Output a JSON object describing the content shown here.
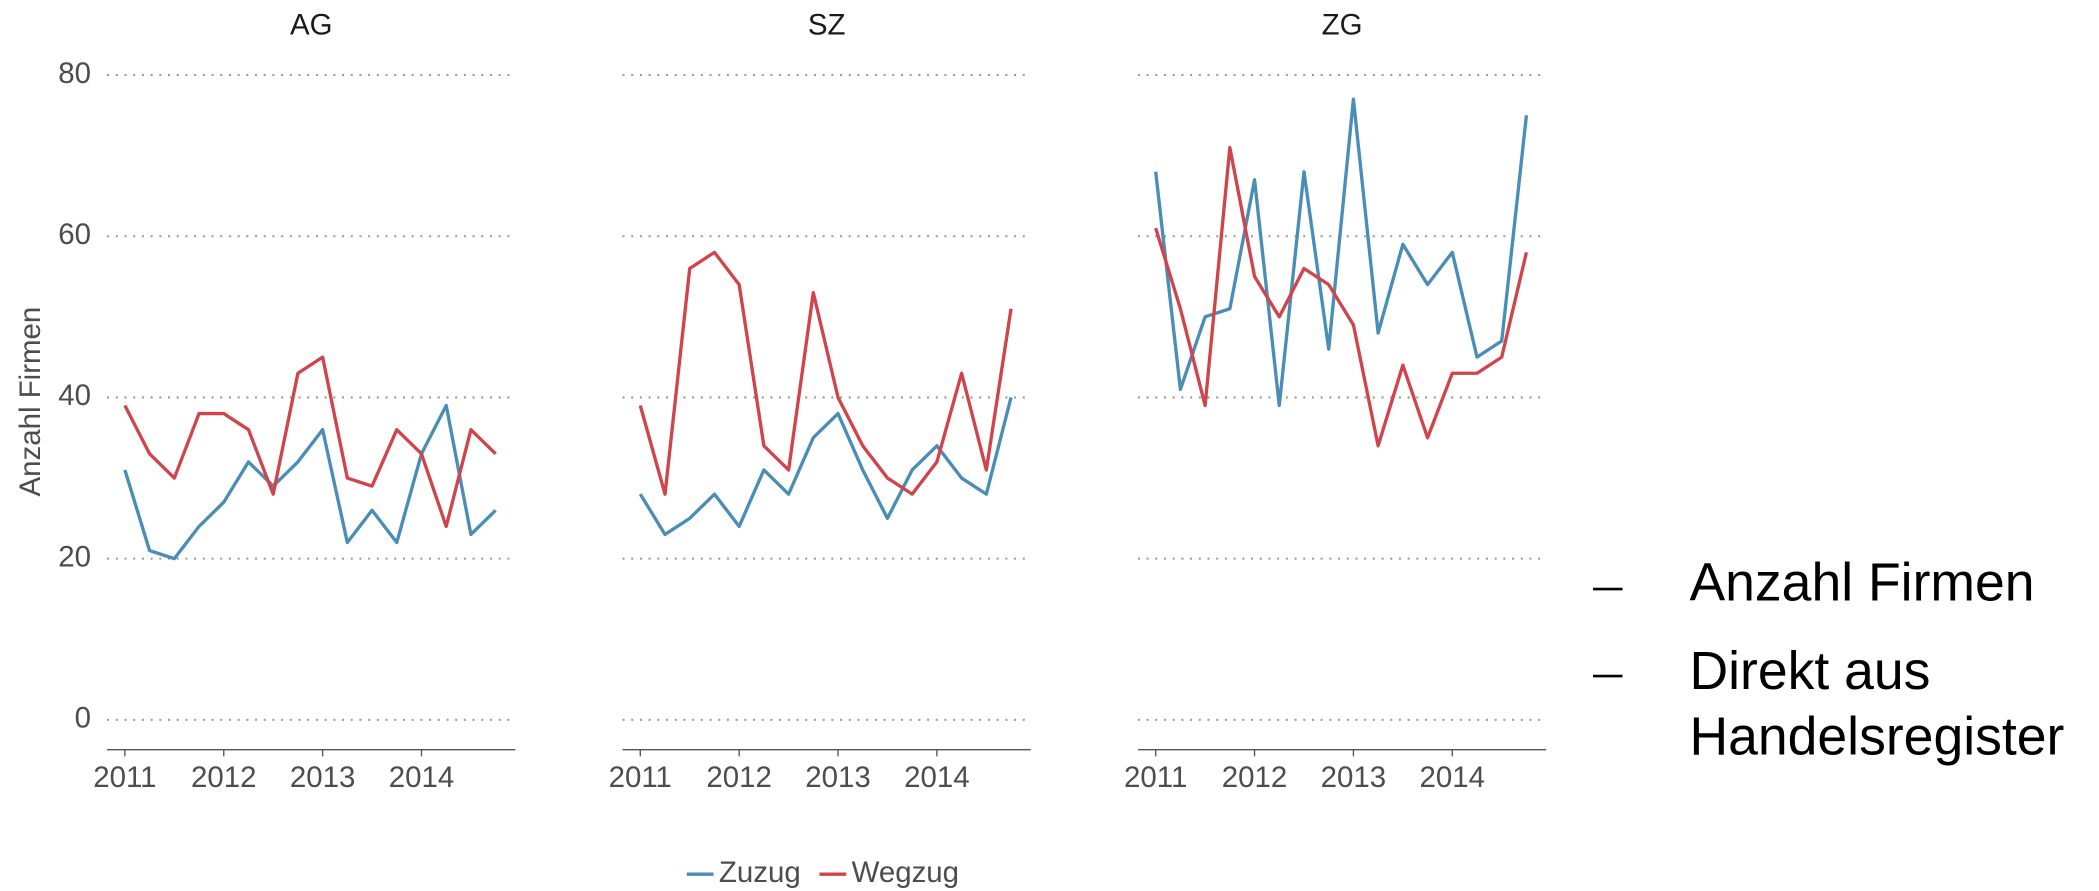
{
  "chart_data": [
    {
      "type": "line",
      "title": "AG",
      "y_label": "Anzahl Firmen",
      "x": [
        2011,
        2011.25,
        2011.5,
        2011.75,
        2012,
        2012.25,
        2012.5,
        2012.75,
        2013,
        2013.25,
        2013.5,
        2013.75,
        2014,
        2014.25,
        2014.5,
        2014.75
      ],
      "series": [
        {
          "name": "Zuzug",
          "color": "#4a8db7",
          "values": [
            31,
            21,
            20,
            24,
            27,
            32,
            29,
            32,
            36,
            22,
            26,
            22,
            33,
            39,
            23,
            26
          ]
        },
        {
          "name": "Wegzug",
          "color": "#d0454c",
          "values": [
            39,
            33,
            30,
            38,
            38,
            36,
            28,
            43,
            45,
            30,
            29,
            36,
            33,
            24,
            36,
            33
          ]
        }
      ],
      "xlim": [
        2010.82,
        2014.95
      ],
      "xticks": [
        2011,
        2012,
        2013,
        2014
      ],
      "ylim": [
        -3.7,
        82
      ],
      "yticks": [
        0,
        20,
        40,
        60,
        80
      ],
      "grid": true
    },
    {
      "type": "line",
      "title": "SZ",
      "x": [
        2011,
        2011.25,
        2011.5,
        2011.75,
        2012,
        2012.25,
        2012.5,
        2012.75,
        2013,
        2013.25,
        2013.5,
        2013.75,
        2014,
        2014.25,
        2014.5,
        2014.75
      ],
      "series": [
        {
          "name": "Zuzug",
          "color": "#4a8db7",
          "values": [
            28,
            23,
            25,
            28,
            24,
            31,
            28,
            35,
            38,
            31,
            25,
            31,
            34,
            30,
            28,
            40
          ]
        },
        {
          "name": "Wegzug",
          "color": "#d0454c",
          "values": [
            39,
            28,
            56,
            58,
            54,
            34,
            31,
            53,
            40,
            34,
            30,
            28,
            32,
            43,
            31,
            51
          ]
        }
      ],
      "xlim": [
        2010.82,
        2014.95
      ],
      "xticks": [
        2011,
        2012,
        2013,
        2014
      ],
      "ylim": [
        -3.7,
        82
      ],
      "yticks": [
        0,
        20,
        40,
        60,
        80
      ],
      "grid": true
    },
    {
      "type": "line",
      "title": "ZG",
      "x": [
        2011,
        2011.25,
        2011.5,
        2011.75,
        2012,
        2012.25,
        2012.5,
        2012.75,
        2013,
        2013.25,
        2013.5,
        2013.75,
        2014,
        2014.25,
        2014.5,
        2014.75
      ],
      "series": [
        {
          "name": "Zuzug",
          "color": "#4a8db7",
          "values": [
            68,
            41,
            50,
            51,
            67,
            39,
            68,
            46,
            77,
            48,
            59,
            54,
            58,
            45,
            47,
            75
          ]
        },
        {
          "name": "Wegzug",
          "color": "#d0454c",
          "values": [
            61,
            51,
            39,
            71,
            55,
            50,
            56,
            54,
            49,
            34,
            44,
            35,
            43,
            43,
            45,
            58
          ]
        }
      ],
      "xlim": [
        2010.82,
        2014.95
      ],
      "xticks": [
        2011,
        2012,
        2013,
        2014
      ],
      "ylim": [
        -3.7,
        82
      ],
      "yticks": [
        0,
        20,
        40,
        60,
        80
      ],
      "grid": true
    }
  ],
  "notes": [
    "Anzahl Firmen",
    "Direkt aus",
    "Handelsregister"
  ]
}
